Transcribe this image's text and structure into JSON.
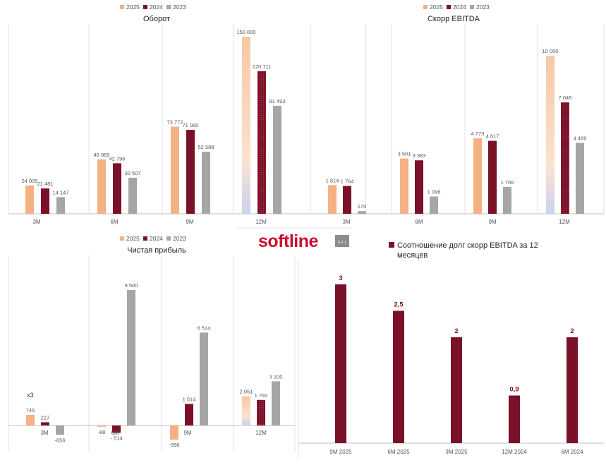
{
  "colors": {
    "c2025": "#f4b183",
    "c2024": "#7b1128",
    "c2023": "#a6a6a6"
  },
  "logo": {
    "text": "softline",
    "badge": "S F L"
  },
  "chart_data": [
    {
      "id": "turnover",
      "type": "bar",
      "title": "Оборот",
      "categories": [
        "3M",
        "6M",
        "9M",
        "12M"
      ],
      "series": [
        {
          "name": "2025",
          "values": [
            24005,
            46069,
            73772,
            150000
          ],
          "labels": [
            "24 005",
            "46 069",
            "73 772",
            "150 000"
          ],
          "projected": [
            false,
            false,
            false,
            true
          ]
        },
        {
          "name": "2024",
          "values": [
            21481,
            42796,
            71090,
            120711
          ],
          "labels": [
            "21 481",
            "42 796",
            "71 090",
            "120 711"
          ]
        },
        {
          "name": "2023",
          "values": [
            14147,
            30507,
            52588,
            91493
          ],
          "labels": [
            "14 147",
            "30 507",
            "52 588",
            "91 493"
          ]
        }
      ],
      "ylim": [
        0,
        150000
      ]
    },
    {
      "id": "ebitda",
      "type": "bar",
      "title": "Скорр EBITDA",
      "categories": [
        "3M",
        "6M",
        "9M",
        "12M"
      ],
      "series": [
        {
          "name": "2025",
          "values": [
            1814,
            3501,
            4773,
            10000
          ],
          "labels": [
            "1 814",
            "3 501",
            "4 773",
            "10 000"
          ],
          "projected": [
            false,
            false,
            false,
            true
          ]
        },
        {
          "name": "2024",
          "values": [
            1764,
            3383,
            4617,
            7049
          ],
          "labels": [
            "1 764",
            "3 383",
            "4 617",
            "7 049"
          ]
        },
        {
          "name": "2023",
          "values": [
            170,
            1096,
            1706,
            4489
          ],
          "labels": [
            "170",
            "1 096",
            "1 706",
            "4 489"
          ]
        }
      ],
      "ylim": [
        0,
        10000
      ]
    },
    {
      "id": "net_profit",
      "type": "bar",
      "title": "Чистая прибыль",
      "categories": [
        "3M",
        "6M",
        "9M",
        "12M"
      ],
      "series": [
        {
          "name": "2025",
          "values": [
            745,
            -88,
            -996,
            2051
          ],
          "labels": [
            "745",
            "-88",
            "-996",
            "2 051"
          ],
          "projected": [
            false,
            false,
            false,
            true
          ]
        },
        {
          "name": "2024",
          "values": [
            227,
            -514,
            1514,
            1792
          ],
          "labels": [
            "227",
            "- 514",
            "1 514",
            "1 792"
          ]
        },
        {
          "name": "2023",
          "values": [
            -656,
            9500,
            6514,
            3100
          ],
          "labels": [
            "-656",
            "9 500",
            "6 514",
            "3 100"
          ]
        }
      ],
      "ylim": [
        -1000,
        9500
      ],
      "annotation": "x3"
    },
    {
      "id": "debt_ratio",
      "type": "bar",
      "title": "Соотношение долг скорр EBITDA за 12 месяцев",
      "categories": [
        "9M 2025",
        "6M 2025",
        "3M 2025",
        "12M 2024",
        "6M 2024"
      ],
      "series": [
        {
          "name": "Соотношение долг скорр EBITDA за 12 месяцев",
          "values": [
            3,
            2.5,
            2,
            0.9,
            2
          ],
          "labels": [
            "3",
            "2,5",
            "2",
            "0,9",
            "2"
          ]
        }
      ],
      "ylim": [
        0,
        3
      ]
    }
  ]
}
